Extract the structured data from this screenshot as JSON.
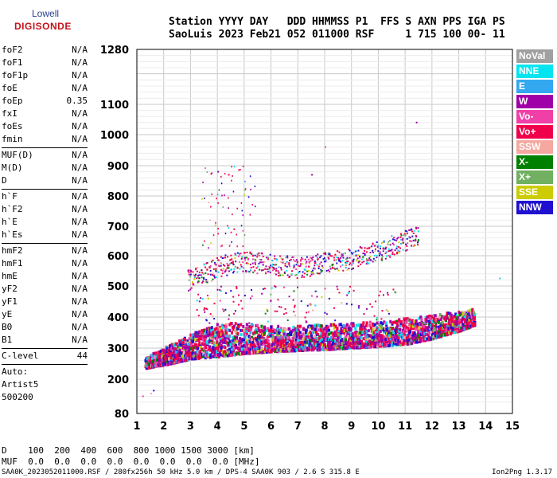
{
  "logo": {
    "line1": "Lowell",
    "line2": "DIGISONDE"
  },
  "header": {
    "line1": "Station YYYY DAY   DDD HHMMSS P1  FFS S AXN PPS IGA PS",
    "line2": "SaoLuis 2023 Feb21 052 011000 RSF     1 715 100 00- 11"
  },
  "params": [
    {
      "k": "foF2",
      "v": "N/A"
    },
    {
      "k": "foF1",
      "v": "N/A"
    },
    {
      "k": "foF1p",
      "v": "N/A"
    },
    {
      "k": "foE",
      "v": "N/A"
    },
    {
      "k": "foEp",
      "v": "0.35"
    },
    {
      "k": "fxI",
      "v": "N/A"
    },
    {
      "k": "foEs",
      "v": "N/A"
    },
    {
      "k": "fmin",
      "v": "N/A"
    },
    {
      "k": "MUF(D)",
      "v": "N/A"
    },
    {
      "k": "M(D)",
      "v": "N/A"
    },
    {
      "k": "D",
      "v": "N/A"
    },
    {
      "k": "h`F",
      "v": "N/A"
    },
    {
      "k": "h`F2",
      "v": "N/A"
    },
    {
      "k": "h`E",
      "v": "N/A"
    },
    {
      "k": "h`Es",
      "v": "N/A"
    },
    {
      "k": "hmF2",
      "v": "N/A"
    },
    {
      "k": "hmF1",
      "v": "N/A"
    },
    {
      "k": "hmE",
      "v": "N/A"
    },
    {
      "k": "yF2",
      "v": "N/A"
    },
    {
      "k": "yF1",
      "v": "N/A"
    },
    {
      "k": "yE",
      "v": "N/A"
    },
    {
      "k": "B0",
      "v": "N/A"
    },
    {
      "k": "B1",
      "v": "N/A"
    },
    {
      "k": "C-level",
      "v": "44"
    },
    {
      "k": "Auto:",
      "v": ""
    },
    {
      "k": "Artist5",
      "v": ""
    },
    {
      "k": "500200",
      "v": ""
    }
  ],
  "legend": [
    {
      "name": "NoVal",
      "color": "#a0a0a0"
    },
    {
      "name": "NNE",
      "color": "#00e5f0"
    },
    {
      "name": "E",
      "color": "#33a8f0"
    },
    {
      "name": "W",
      "color": "#a000a8"
    },
    {
      "name": "Vo-",
      "color": "#f040a8"
    },
    {
      "name": "Vo+",
      "color": "#f0004a"
    },
    {
      "name": "SSW",
      "color": "#f4a8a0"
    },
    {
      "name": "X-",
      "color": "#008000"
    },
    {
      "name": "X+",
      "color": "#70b060"
    },
    {
      "name": "SSE",
      "color": "#cccc00"
    },
    {
      "name": "NNW",
      "color": "#2010d0"
    }
  ],
  "bottom": {
    "d_line": "D    100  200  400  600  800 1000 1500 3000 [km]",
    "muf_line": "MUF  0.0  0.0  0.0  0.0  0.0  0.0  0.0  0.0 [MHz]"
  },
  "footer": {
    "left": "SAA0K_2023052011000.RSF / 280fx256h 50 kHz 5.0 km / DPS-4 SAA0K 903 / 2.6 S 315.8 E",
    "right": "Ion2Png 1.3.17"
  },
  "chart_data": {
    "type": "scatter",
    "x": {
      "min": 1,
      "max": 15,
      "ticks": [
        1,
        2,
        3,
        4,
        5,
        6,
        7,
        8,
        9,
        10,
        11,
        12,
        13,
        14,
        15
      ],
      "unit": "MHz"
    },
    "y": {
      "min": 80,
      "max": 1280,
      "ticks": [
        80,
        200,
        300,
        400,
        500,
        600,
        700,
        800,
        900,
        1000,
        1100,
        1280
      ],
      "unit": "km",
      "scale": "ionogram"
    },
    "grid": true,
    "legend_placement": "right",
    "traces": [
      {
        "name": "F-layer O-trace (lower edge)",
        "points": [
          [
            1.3,
            235
          ],
          [
            2.0,
            245
          ],
          [
            2.5,
            255
          ],
          [
            3.0,
            265
          ],
          [
            4.0,
            272
          ],
          [
            5.0,
            282
          ],
          [
            6.0,
            288
          ],
          [
            7.0,
            292
          ],
          [
            8.0,
            295
          ],
          [
            9.0,
            300
          ],
          [
            10.0,
            305
          ],
          [
            11.0,
            312
          ],
          [
            12.0,
            330
          ],
          [
            13.0,
            355
          ],
          [
            13.6,
            375
          ]
        ]
      },
      {
        "name": "F-layer O-trace (upper edge)",
        "points": [
          [
            1.3,
            270
          ],
          [
            2.0,
            300
          ],
          [
            3.0,
            345
          ],
          [
            4.0,
            380
          ],
          [
            5.0,
            380
          ],
          [
            6.0,
            370
          ],
          [
            7.0,
            370
          ],
          [
            8.0,
            375
          ],
          [
            9.0,
            380
          ],
          [
            10.0,
            385
          ],
          [
            11.0,
            395
          ],
          [
            12.0,
            405
          ],
          [
            13.0,
            420
          ],
          [
            13.6,
            425
          ]
        ]
      },
      {
        "name": "Second-hop echo",
        "points": [
          [
            2.9,
            520
          ],
          [
            3.5,
            540
          ],
          [
            4.0,
            560
          ],
          [
            4.5,
            575
          ],
          [
            5.0,
            580
          ],
          [
            6.0,
            570
          ],
          [
            7.0,
            560
          ],
          [
            8.0,
            575
          ],
          [
            9.0,
            590
          ],
          [
            10.0,
            615
          ],
          [
            11.0,
            650
          ],
          [
            11.5,
            670
          ]
        ]
      }
    ],
    "outliers": [
      [
        4.0,
        880
      ],
      [
        4.4,
        870
      ],
      [
        5.0,
        820
      ],
      [
        4.6,
        690
      ],
      [
        7.5,
        870
      ],
      [
        8.0,
        960
      ],
      [
        11.4,
        1040
      ],
      [
        14.5,
        525
      ],
      [
        1.2,
        140
      ],
      [
        1.5,
        150
      ],
      [
        1.6,
        160
      ]
    ]
  }
}
